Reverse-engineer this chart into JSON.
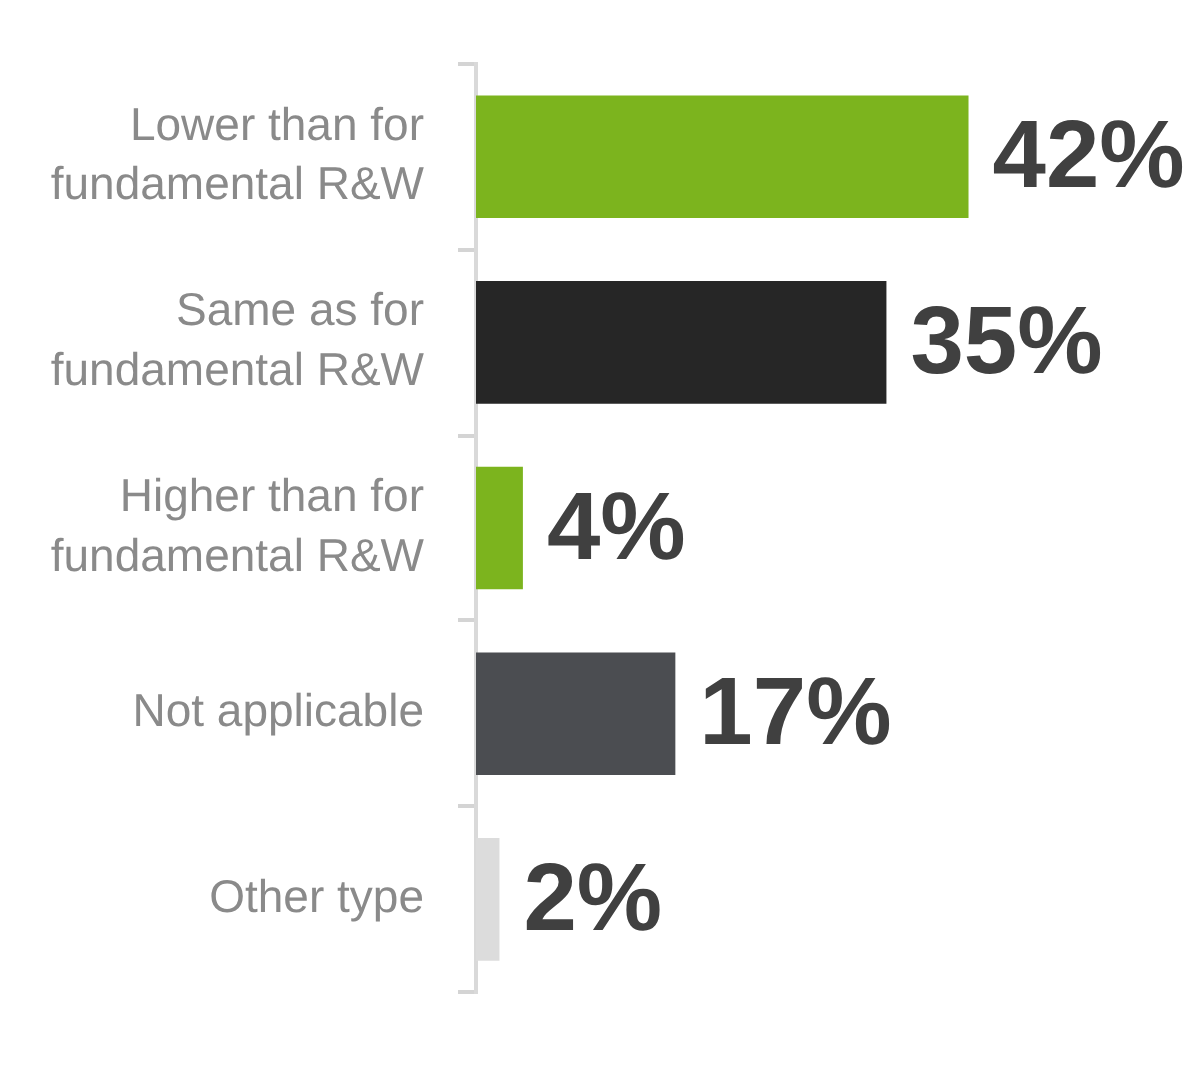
{
  "chart_data": {
    "type": "bar",
    "orientation": "horizontal",
    "tick_labels": "y",
    "categories": [
      "Lower than for fundamental R&W",
      "Same as for fundamental R&W",
      "Higher than for fundamental R&W",
      "Not applicable",
      "Other type"
    ],
    "values": [
      42,
      35,
      4,
      17,
      2
    ],
    "colors": [
      "#7cb41e",
      "#262626",
      "#7cb41e",
      "#4b4d51",
      "#dcdcdc"
    ],
    "value_labels": [
      "42%",
      "35%",
      "4%",
      "17%",
      "2%"
    ]
  }
}
